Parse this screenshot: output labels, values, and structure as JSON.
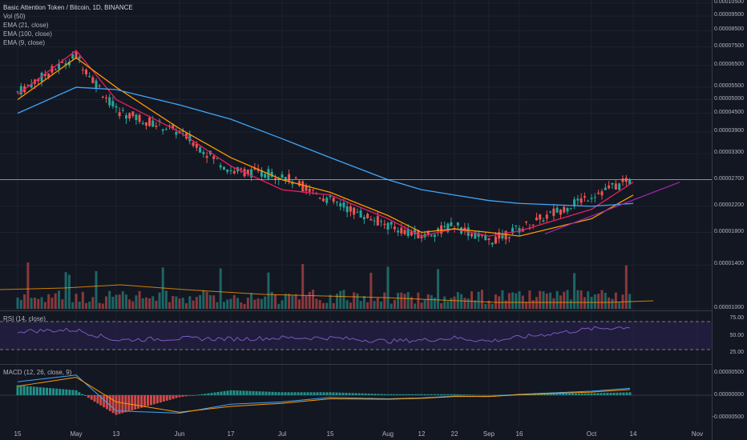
{
  "header": {
    "title": "Basic Attention Token / Bitcoin, 1D, BINANCE",
    "studies": [
      "Vol (50)",
      "EMA (21, close)",
      "EMA (100, close)",
      "EMA (9, close)"
    ]
  },
  "rsi_pane": {
    "label": "RSI (14, close)",
    "levels": [
      "75.00",
      "50.00",
      "25.00"
    ]
  },
  "macd_pane": {
    "label": "MACD (12, 26, close, 9)",
    "levels": [
      "0.00000500",
      "0.00000000",
      "-0.00000500"
    ]
  },
  "price_axis": {
    "labels": [
      "0.00010500",
      "0.00009500",
      "0.00008500",
      "0.00007500",
      "0.00006500",
      "0.00005500",
      "0.00005000",
      "0.00004500",
      "0.00003900",
      "0.00003300",
      "0.00002700",
      "0.00002200",
      "0.00001800",
      "0.00001400",
      "0.00001000"
    ]
  },
  "time_axis": {
    "labels": [
      "15",
      "May",
      "13",
      "Jun",
      "17",
      "Jul",
      "15",
      "Aug",
      "12",
      "22",
      "Sep",
      "16",
      "Oct",
      "14",
      "Nov"
    ]
  },
  "colors": {
    "background": "#131722",
    "up": "#26a69a",
    "down": "#ef5350",
    "ema9": "#e91e63",
    "ema21": "#ff9800",
    "ema100": "#42a5f5",
    "rsi": "#7e57c2",
    "trendline": "#9c27b0",
    "hline": "#ef9a9a"
  },
  "chart_data": [
    {
      "type": "candlestick",
      "title": "Basic Attention Token / Bitcoin, 1D, BINANCE",
      "y_scale": "log",
      "ylim": [
        1e-05,
        0.000105
      ],
      "x_ticks": [
        "15",
        "May",
        "13",
        "Jun",
        "17",
        "Jul",
        "15",
        "Aug",
        "12",
        "22",
        "Sep",
        "16",
        "Oct",
        "14",
        "Nov"
      ],
      "horizontal_line": 2.7e-05,
      "series": [
        {
          "name": "EMA (9, close)",
          "x": [
            "15",
            "May",
            "13",
            "Jun",
            "17",
            "Jul",
            "15",
            "Aug",
            "12",
            "22",
            "Sep",
            "16",
            "Oct",
            "14"
          ],
          "values": [
            5.2e-05,
            7.3e-05,
            5e-05,
            3.9e-05,
            3e-05,
            2.5e-05,
            2.4e-05,
            2e-05,
            1.75e-05,
            1.85e-05,
            1.75e-05,
            1.82e-05,
            2.15e-05,
            2.65e-05
          ]
        },
        {
          "name": "EMA (21, close)",
          "x": [
            "15",
            "May",
            "13",
            "Jun",
            "17",
            "Jul",
            "15",
            "Aug",
            "12",
            "22",
            "Sep",
            "16",
            "Oct",
            "14"
          ],
          "values": [
            5e-05,
            6.9e-05,
            5.5e-05,
            4e-05,
            3.2e-05,
            2.7e-05,
            2.45e-05,
            2.05e-05,
            1.8e-05,
            1.85e-05,
            1.8e-05,
            1.75e-05,
            2e-05,
            2.4e-05
          ]
        },
        {
          "name": "EMA (100, close)",
          "x": [
            "15",
            "May",
            "13",
            "Jun",
            "17",
            "Jul",
            "15",
            "Aug",
            "12",
            "22",
            "Sep",
            "16",
            "Oct",
            "14"
          ],
          "values": [
            4.5e-05,
            5.5e-05,
            5.4e-05,
            4.8e-05,
            4.3e-05,
            3.7e-05,
            3.2e-05,
            2.7e-05,
            2.5e-05,
            2.4e-05,
            2.3e-05,
            2.25e-05,
            2.2e-05,
            2.25e-05
          ]
        }
      ],
      "candles": [
        {
          "x": "15",
          "o": 5e-05,
          "h": 5.5e-05,
          "l": 4.7e-05,
          "c": 5.3e-05
        },
        {
          "x": "May",
          "o": 7.5e-05,
          "h": 8e-05,
          "l": 6.8e-05,
          "c": 7e-05
        },
        {
          "x": "13",
          "o": 5.2e-05,
          "h": 5.6e-05,
          "l": 4.4e-05,
          "c": 4.6e-05
        },
        {
          "x": "Jun",
          "o": 4e-05,
          "h": 4.2e-05,
          "l": 3.7e-05,
          "c": 3.9e-05
        },
        {
          "x": "17",
          "o": 3.1e-05,
          "h": 3.4e-05,
          "l": 2.8e-05,
          "c": 2.9e-05
        },
        {
          "x": "Jul",
          "o": 2.6e-05,
          "h": 3e-05,
          "l": 2.2e-05,
          "c": 2.8e-05
        },
        {
          "x": "15",
          "o": 2.4e-05,
          "h": 2.5e-05,
          "l": 2.2e-05,
          "c": 2.3e-05
        },
        {
          "x": "Aug",
          "o": 2e-05,
          "h": 2.1e-05,
          "l": 1.8e-05,
          "c": 1.9e-05
        },
        {
          "x": "12",
          "o": 1.8e-05,
          "h": 1.9e-05,
          "l": 1.7e-05,
          "c": 1.75e-05
        },
        {
          "x": "22",
          "o": 1.8e-05,
          "h": 2e-05,
          "l": 1.7e-05,
          "c": 1.9e-05
        },
        {
          "x": "Sep",
          "o": 1.8e-05,
          "h": 1.9e-05,
          "l": 1.6e-05,
          "c": 1.68e-05
        },
        {
          "x": "16",
          "o": 1.8e-05,
          "h": 1.9e-05,
          "l": 1.7e-05,
          "c": 1.85e-05
        },
        {
          "x": "Oct",
          "o": 2.2e-05,
          "h": 2.6e-05,
          "l": 2.1e-05,
          "c": 2.4e-05
        },
        {
          "x": "14",
          "o": 2.6e-05,
          "h": 2.9e-05,
          "l": 2.5e-05,
          "c": 2.7e-05
        }
      ]
    },
    {
      "type": "line",
      "title": "RSI (14, close)",
      "ylim": [
        25,
        75
      ],
      "y_ticks": [
        75,
        50,
        25
      ],
      "x": [
        "15",
        "May",
        "13",
        "Jun",
        "17",
        "Jul",
        "15",
        "Aug",
        "12",
        "22",
        "Sep",
        "16",
        "Oct",
        "14"
      ],
      "series": [
        {
          "name": "RSI (14, close)",
          "values": [
            58,
            60,
            42,
            45,
            44,
            46,
            46,
            40,
            42,
            46,
            40,
            47,
            62,
            66
          ]
        }
      ]
    },
    {
      "type": "bar",
      "title": "MACD (12, 26, close, 9)",
      "ylim": [
        -5e-06,
        5e-06
      ],
      "y_ticks": [
        5e-06,
        0,
        -5e-06
      ],
      "x": [
        "15",
        "May",
        "13",
        "Jun",
        "17",
        "Jul",
        "15",
        "Aug",
        "12",
        "22",
        "Sep",
        "16",
        "Oct",
        "14"
      ],
      "series": [
        {
          "name": "MACD",
          "values": [
            3e-06,
            4.5e-06,
            -3.5e-06,
            -4e-06,
            -2e-06,
            -1.5e-06,
            -5e-07,
            -8e-07,
            -6e-07,
            -2e-07,
            -3e-07,
            2e-07,
            9e-07,
            1.6e-06
          ]
        },
        {
          "name": "Signal",
          "values": [
            2e-06,
            4e-06,
            -1.5e-06,
            -3.8e-06,
            -2.5e-06,
            -1.8e-06,
            -8e-07,
            -9e-07,
            -7e-07,
            -3e-07,
            -3e-07,
            1e-07,
            7e-07,
            1.3e-06
          ]
        }
      ]
    }
  ]
}
